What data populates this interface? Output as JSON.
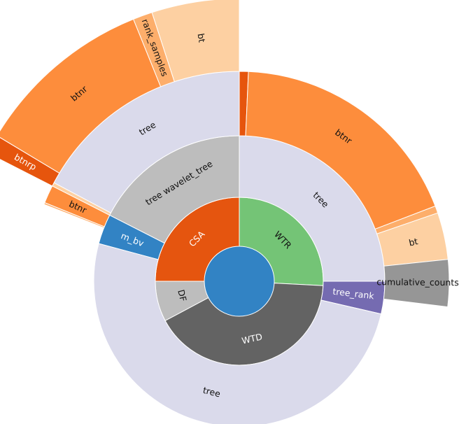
{
  "chart_data": {
    "type": "sunburst",
    "center_color": "#3283c4",
    "nodes": [
      {
        "id": "csa",
        "label": "CSA",
        "level": 1,
        "start_deg": 270,
        "end_deg": 360,
        "color": "#e5550f",
        "text_color": "#ffffff"
      },
      {
        "id": "wtr",
        "label": "WTR",
        "level": 1,
        "start_deg": 0,
        "end_deg": 93,
        "color": "#74c476",
        "text_color": "#111111"
      },
      {
        "id": "wtd",
        "label": "WTD",
        "level": 1,
        "start_deg": 93,
        "end_deg": 242,
        "color": "#636363",
        "text_color": "#ffffff"
      },
      {
        "id": "df",
        "label": "DF",
        "level": 1,
        "start_deg": 242,
        "end_deg": 270,
        "color": "#bdbdbd",
        "text_color": "#111111"
      },
      {
        "id": "csa_tree",
        "label": "tree wavelet_tree",
        "level": 2,
        "start_deg": 297,
        "end_deg": 360,
        "color": "#bdbdbd",
        "text_color": "#111111"
      },
      {
        "id": "csa_mbv",
        "label": "m_bv",
        "level": 2,
        "start_deg": 285,
        "end_deg": 297,
        "color": "#3283c4",
        "text_color": "#ffffff"
      },
      {
        "id": "wtr_tree",
        "label": "tree",
        "level": 2,
        "start_deg": 0,
        "end_deg": 90,
        "color": "#dadaeb",
        "text_color": "#111111"
      },
      {
        "id": "wtr_rank",
        "label": "tree_rank",
        "level": 2,
        "start_deg": 90,
        "end_deg": 103,
        "color": "#756bb1",
        "text_color": "#ffffff"
      },
      {
        "id": "wtd_tree",
        "label": "tree",
        "level": 2,
        "start_deg": 103,
        "end_deg": 285,
        "color": "#dadaeb",
        "text_color": "#111111"
      },
      {
        "id": "csa_tree_tree",
        "label": "tree",
        "level": 3,
        "start_deg": 298,
        "end_deg": 360,
        "color": "#dadaeb",
        "text_color": "#111111"
      },
      {
        "id": "csa_btnr",
        "label": "btnr",
        "level": 3,
        "start_deg": 292,
        "end_deg": 297,
        "color": "#fd8d3c",
        "text_color": "#111111"
      },
      {
        "id": "csa_thin_a",
        "label": "",
        "level": 3,
        "start_deg": 297,
        "end_deg": 298,
        "color": "#fdd0a2",
        "text_color": "#111111"
      },
      {
        "id": "csa_thin_b",
        "label": "",
        "level": 3,
        "start_deg": 291.5,
        "end_deg": 292,
        "color": "#fdae6b",
        "text_color": "#111111"
      },
      {
        "id": "wtr_tree_thin",
        "label": "",
        "level": 3,
        "start_deg": 0,
        "end_deg": 2.5,
        "color": "#e6550d",
        "text_color": "#111111"
      },
      {
        "id": "wtr_tree_btnr",
        "label": "btnr",
        "level": 3,
        "start_deg": 2.5,
        "end_deg": 69,
        "color": "#fd8d3c",
        "text_color": "#111111"
      },
      {
        "id": "wtr_tree_sep",
        "label": "",
        "level": 3,
        "start_deg": 69,
        "end_deg": 71,
        "color": "#fdae6b",
        "text_color": "#111111"
      },
      {
        "id": "wtr_tree_bt",
        "label": "bt",
        "level": 3,
        "start_deg": 71,
        "end_deg": 84,
        "color": "#fdd0a2",
        "text_color": "#111111"
      },
      {
        "id": "wtr_cumulative",
        "label": "cumulative_counts",
        "level": 3,
        "start_deg": 84,
        "end_deg": 97,
        "color": "#969696",
        "text_color": "#111111"
      },
      {
        "id": "csa_btnrp",
        "label": "btnrp",
        "level": 4,
        "start_deg": 297,
        "end_deg": 301,
        "color": "#e6550d",
        "text_color": "#ffffff"
      },
      {
        "id": "csa_btnr2",
        "label": "btnr",
        "level": 4,
        "start_deg": 301,
        "end_deg": 338,
        "color": "#fd8d3c",
        "text_color": "#111111"
      },
      {
        "id": "csa_rank_samples",
        "label": "rank_samples",
        "level": 4,
        "start_deg": 338,
        "end_deg": 342,
        "color": "#fdae6b",
        "text_color": "#111111"
      },
      {
        "id": "csa_bt",
        "label": "bt",
        "level": 4,
        "start_deg": 342,
        "end_deg": 360,
        "color": "#fdd0a2",
        "text_color": "#111111"
      }
    ]
  }
}
